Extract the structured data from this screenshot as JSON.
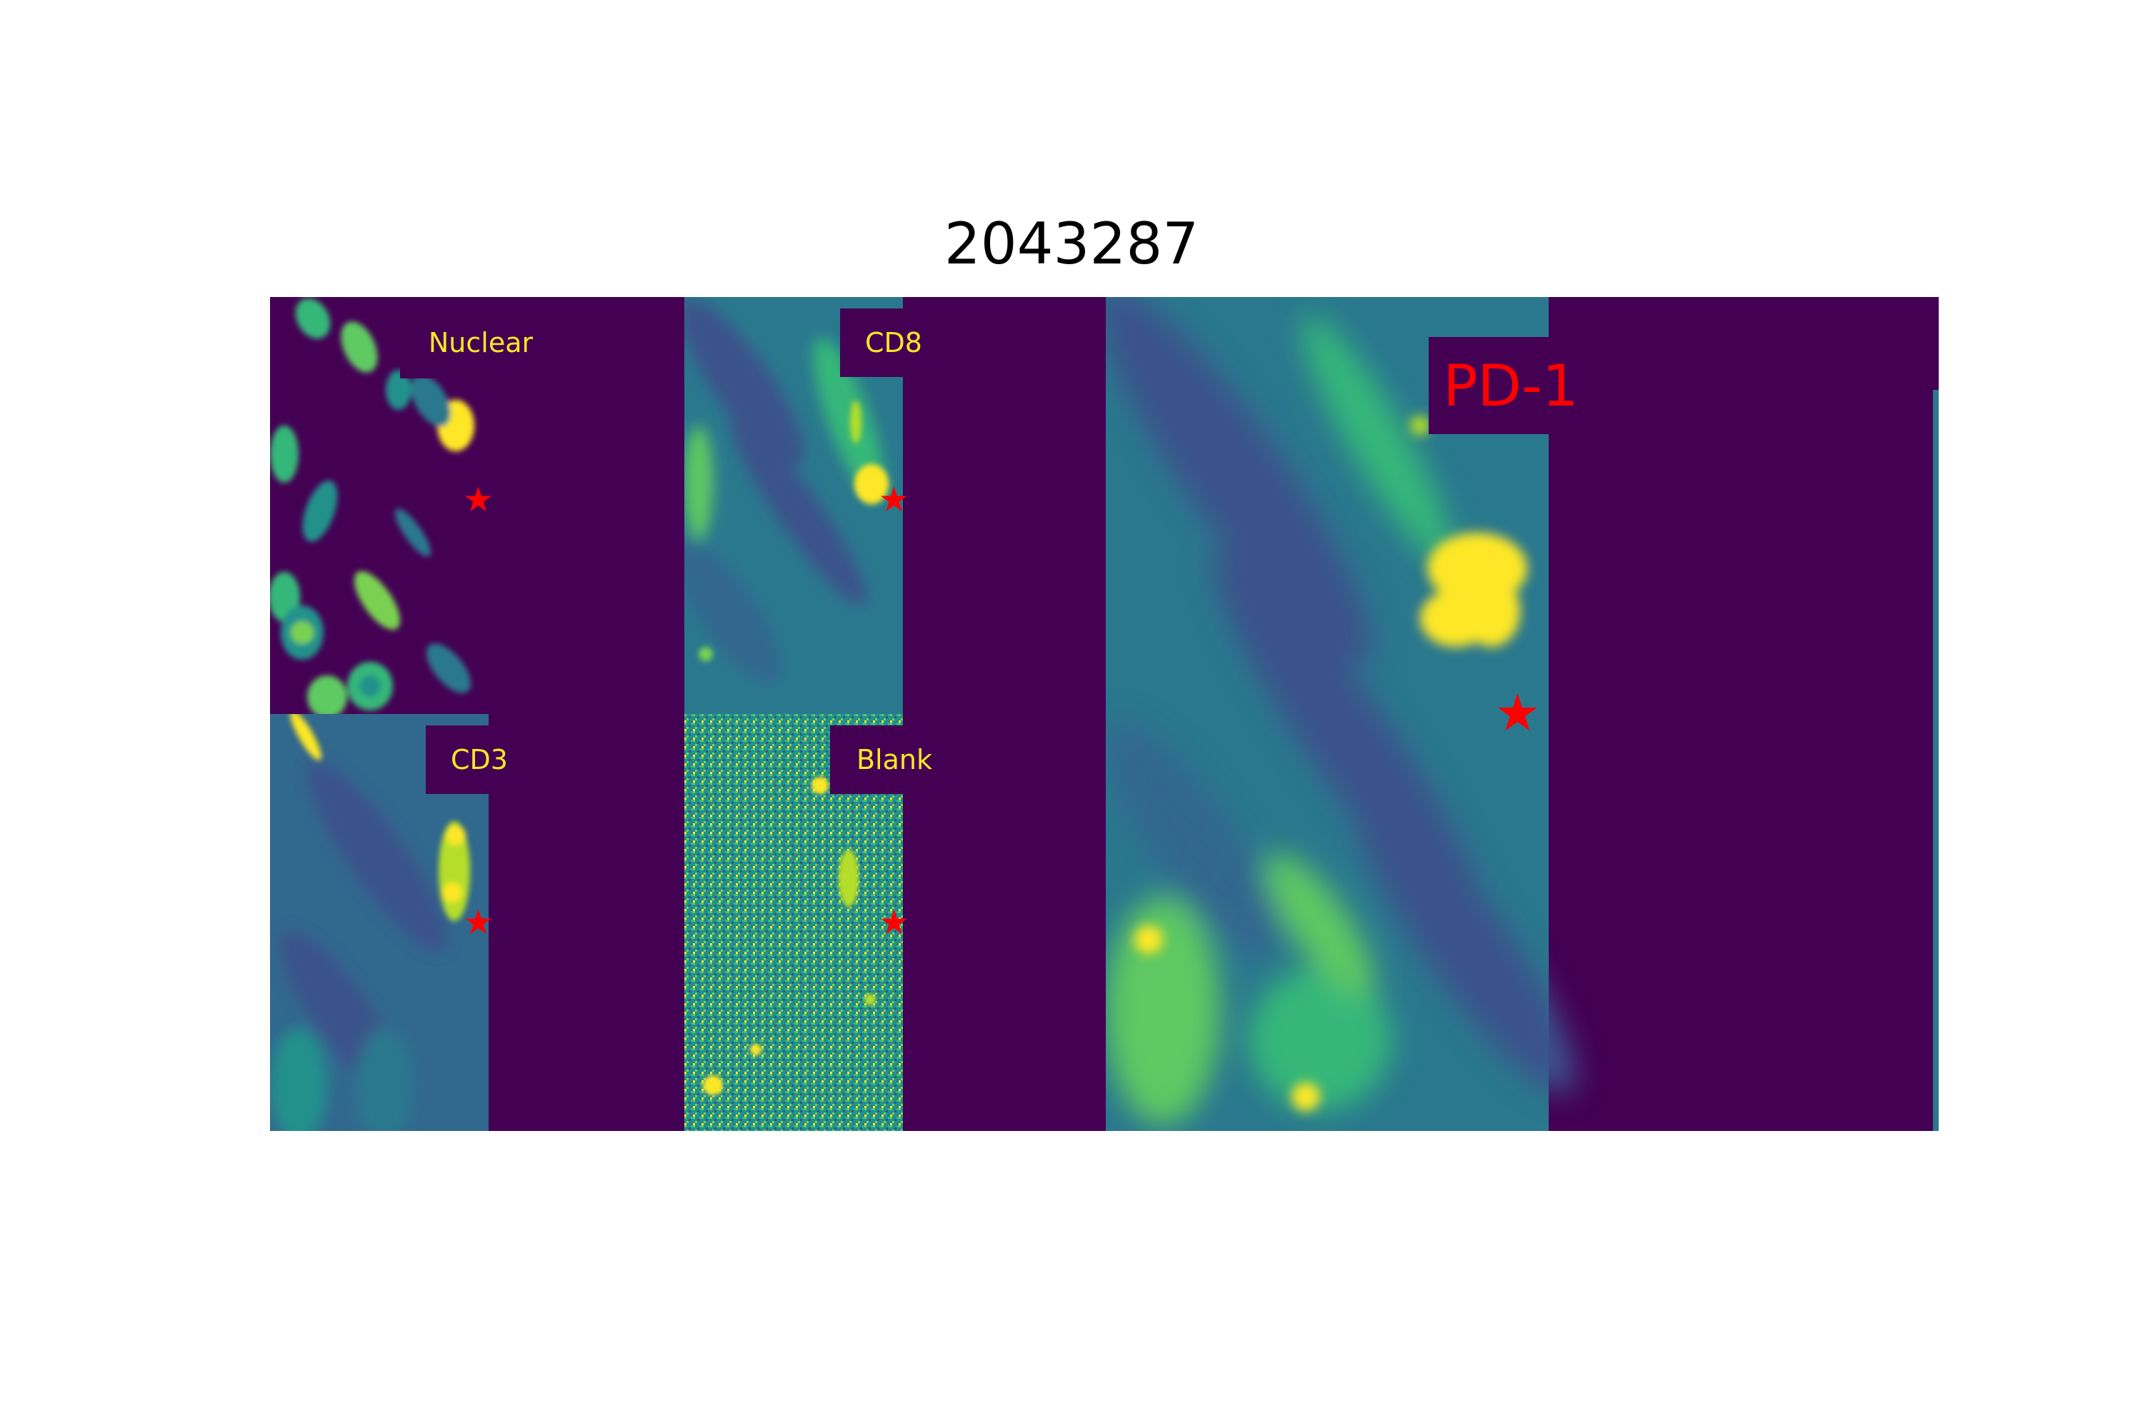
{
  "figure": {
    "title": "2043287"
  },
  "panels": [
    {
      "id": "nuclear",
      "label": "Nuclear",
      "label_color": "#fde725",
      "marker": "star",
      "marker_color": "#ff0000"
    },
    {
      "id": "cd8",
      "label": "CD8",
      "label_color": "#fde725",
      "marker": "star",
      "marker_color": "#ff0000"
    },
    {
      "id": "cd3",
      "label": "CD3",
      "label_color": "#fde725",
      "marker": "star",
      "marker_color": "#ff0000"
    },
    {
      "id": "blank",
      "label": "Blank",
      "label_color": "#fde725",
      "marker": "star",
      "marker_color": "#ff0000"
    },
    {
      "id": "pd1",
      "label": "PD-1",
      "label_color": "#ff0000",
      "marker": "star",
      "marker_color": "#ff0000"
    }
  ],
  "colormap": {
    "low": "#440154",
    "mid_dark": "#3b528b",
    "mid": "#21918c",
    "mid_high": "#5ec962",
    "high": "#fde725"
  }
}
